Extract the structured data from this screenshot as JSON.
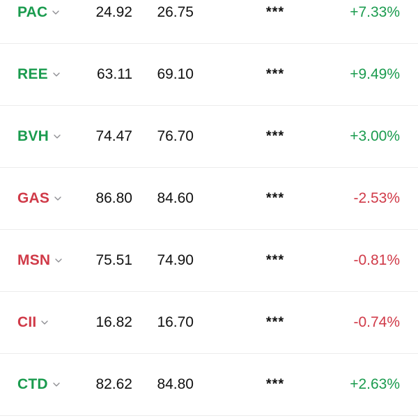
{
  "colors": {
    "up": "#1a9b4e",
    "down": "#d03a48"
  },
  "rows": [
    {
      "ticker": "PAC",
      "ref": "24.92",
      "cur": "26.75",
      "masked": "***",
      "change": "+7.33%",
      "direction": "up",
      "icon": "chevron-down-icon"
    },
    {
      "ticker": "REE",
      "ref": "63.11",
      "cur": "69.10",
      "masked": "***",
      "change": "+9.49%",
      "direction": "up",
      "icon": "chevron-down-icon"
    },
    {
      "ticker": "BVH",
      "ref": "74.47",
      "cur": "76.70",
      "masked": "***",
      "change": "+3.00%",
      "direction": "up",
      "icon": "chevron-down-icon"
    },
    {
      "ticker": "GAS",
      "ref": "86.80",
      "cur": "84.60",
      "masked": "***",
      "change": "-2.53%",
      "direction": "down",
      "icon": "chevron-down-icon"
    },
    {
      "ticker": "MSN",
      "ref": "75.51",
      "cur": "74.90",
      "masked": "***",
      "change": "-0.81%",
      "direction": "down",
      "icon": "chevron-down-icon"
    },
    {
      "ticker": "CII",
      "ref": "16.82",
      "cur": "16.70",
      "masked": "***",
      "change": "-0.74%",
      "direction": "down",
      "icon": "chevron-down-icon"
    },
    {
      "ticker": "CTD",
      "ref": "82.62",
      "cur": "84.80",
      "masked": "***",
      "change": "+2.63%",
      "direction": "up",
      "icon": "chevron-down-icon"
    }
  ]
}
